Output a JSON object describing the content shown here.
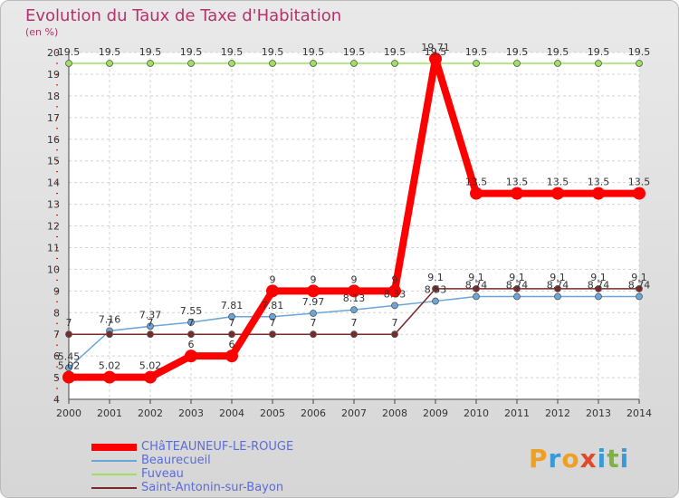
{
  "title": "Evolution du Taux de Taxe d'Habitation",
  "subtitle": "(en %)",
  "brand": {
    "text": "Proxiti"
  },
  "colors": {
    "CHATEAUNEUF": "#ff0000",
    "Beaurecueil": "#6aa6d8",
    "Fuveau": "#9fe060",
    "SaintAntonin": "#7a2a2a"
  },
  "chart_data": {
    "type": "line",
    "title": "Evolution du Taux de Taxe d'Habitation",
    "ylabel": "(en %)",
    "ylim": [
      4,
      20
    ],
    "yticks": [
      "4",
      "5",
      "6",
      "7",
      "8",
      "9",
      "10",
      "11",
      "12",
      "13",
      "14",
      "15",
      "16",
      "17",
      "18",
      "19",
      "20"
    ],
    "categories": [
      "2000",
      "2001",
      "2002",
      "2003",
      "2004",
      "2005",
      "2006",
      "2007",
      "2008",
      "2009",
      "2010",
      "2011",
      "2012",
      "2013",
      "2014"
    ],
    "grid": true,
    "legend_position": "bottom-left",
    "series": [
      {
        "name": "CHâTEAUNEUF-LE-ROUGE",
        "color": "#ff0000",
        "values": [
          5.02,
          5.02,
          5.02,
          6,
          6,
          9,
          9,
          9,
          9,
          19.71,
          13.5,
          13.5,
          13.5,
          13.5,
          13.5
        ],
        "labels": [
          "5.02",
          "5.02",
          "5.02",
          "6",
          "6",
          "9",
          "9",
          "9",
          "9",
          "19.71",
          "13.5",
          "13.5",
          "13.5",
          "13.5",
          "13.5"
        ]
      },
      {
        "name": "Beaurecueil",
        "color": "#6aa6d8",
        "values": [
          5.45,
          7.16,
          7.37,
          7.55,
          7.81,
          7.81,
          7.97,
          8.13,
          8.33,
          8.53,
          8.74,
          8.74,
          8.74,
          8.74,
          8.74
        ],
        "labels": [
          "5.45",
          "7.16",
          "7.37",
          "7.55",
          "7.81",
          "7.81",
          "7.97",
          "8.13",
          "8.33",
          "8.53",
          "8.74",
          "8.74",
          "8.74",
          "8.74",
          "8.74"
        ]
      },
      {
        "name": "Fuveau",
        "color": "#9fe060",
        "values": [
          19.5,
          19.5,
          19.5,
          19.5,
          19.5,
          19.5,
          19.5,
          19.5,
          19.5,
          19.5,
          19.5,
          19.5,
          19.5,
          19.5,
          19.5
        ],
        "labels": [
          "19.5",
          "19.5",
          "19.5",
          "19.5",
          "19.5",
          "19.5",
          "19.5",
          "19.5",
          "19.5",
          "19.5",
          "19.5",
          "19.5",
          "19.5",
          "19.5",
          "19.5"
        ]
      },
      {
        "name": "Saint-Antonin-sur-Bayon",
        "color": "#7a2a2a",
        "values": [
          7,
          7,
          7,
          7,
          7,
          7,
          7,
          7,
          7,
          9.1,
          9.1,
          9.1,
          9.1,
          9.1,
          9.1
        ],
        "labels": [
          "7",
          "7",
          "7",
          "7",
          "7",
          "7",
          "7",
          "7",
          "7",
          "9.1",
          "9.1",
          "9.1",
          "9.1",
          "9.1",
          "9.1"
        ]
      }
    ]
  }
}
